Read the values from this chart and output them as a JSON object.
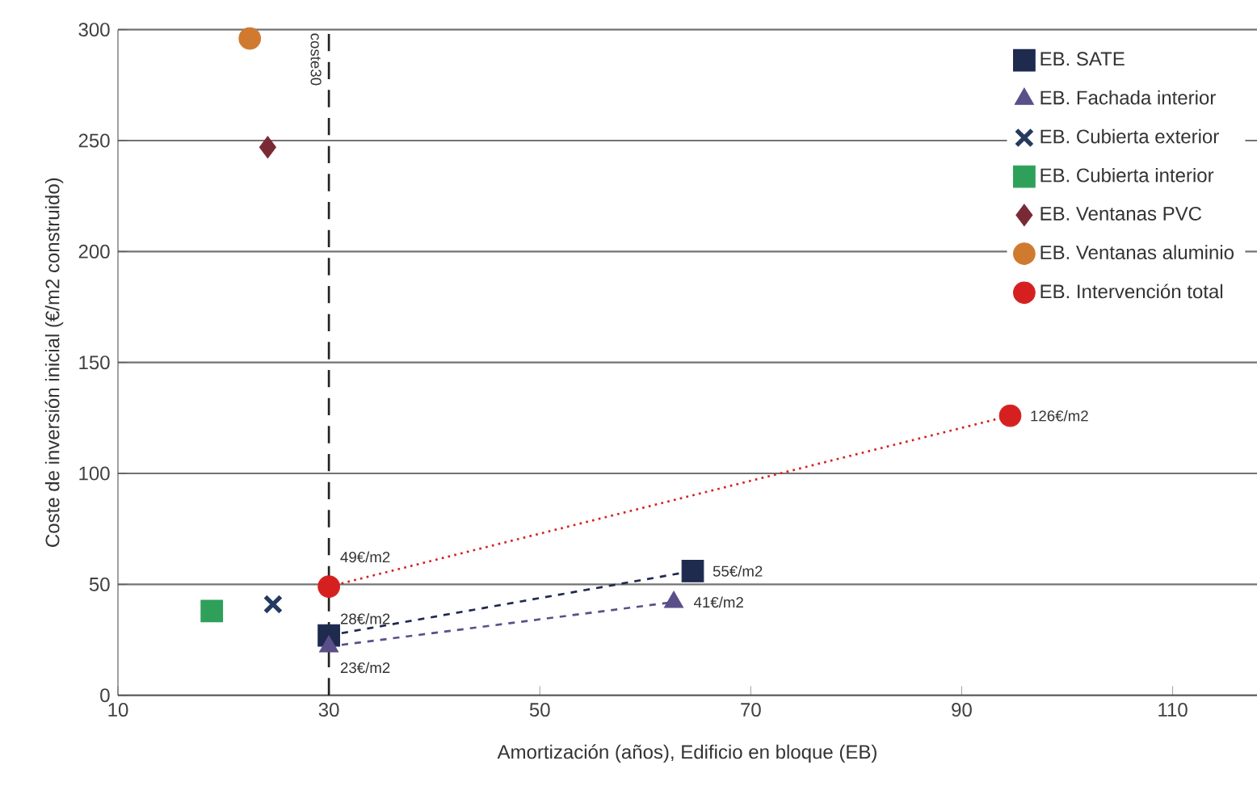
{
  "chart_data": {
    "type": "scatter",
    "xlabel": "Amortización (años), Edificio en bloque (EB)",
    "ylabel": "Coste de inversión inicial (€/m2 construido)",
    "xlim": [
      10,
      118
    ],
    "xticks": [
      10,
      30,
      50,
      70,
      90,
      110
    ],
    "ylim": [
      0,
      300
    ],
    "yticks": [
      0,
      50,
      100,
      150,
      200,
      250,
      300
    ],
    "grid": "y",
    "legend": "top right",
    "series": [
      {
        "name": "EB. SATE",
        "type": "line",
        "line_style": "dashed",
        "marker": "square",
        "color": "#1f2a4f",
        "x": [
          30,
          64.5
        ],
        "values": [
          27,
          56
        ]
      },
      {
        "name": "EB. Fachada interior",
        "type": "line",
        "line_style": "dashed",
        "marker": "triangle",
        "color": "#5b4f8a",
        "x": [
          30,
          62.7
        ],
        "values": [
          22,
          42
        ]
      },
      {
        "name": "EB. Cubierta exterior",
        "marker": "cross",
        "color": "#243a5e",
        "x": [
          24.7
        ],
        "values": [
          41
        ]
      },
      {
        "name": "EB. Cubierta interior",
        "marker": "square",
        "color": "#2ea05a",
        "x": [
          18.9
        ],
        "values": [
          38
        ]
      },
      {
        "name": "EB. Ventanas PVC",
        "marker": "diamond",
        "color": "#7a2a35",
        "x": [
          24.2
        ],
        "values": [
          247
        ]
      },
      {
        "name": "EB. Ventanas aluminio",
        "marker": "circle",
        "color": "#d07a30",
        "x": [
          22.5
        ],
        "values": [
          296
        ]
      },
      {
        "name": "EB. Intervención total",
        "type": "line",
        "line_style": "dotted",
        "marker": "circle",
        "color": "#d62020",
        "x": [
          30,
          94.6
        ],
        "values": [
          49,
          126
        ]
      }
    ],
    "ref_lines": [
      {
        "axis": "x",
        "value": 30,
        "label": "coste30",
        "line_style": "dashed",
        "color": "#222222"
      }
    ],
    "annotations": [
      {
        "text": "49€/m2",
        "x": 30,
        "y": 49
      },
      {
        "text": "28€/m2",
        "x": 30,
        "y": 27
      },
      {
        "text": "23€/m2",
        "x": 30,
        "y": 22
      },
      {
        "text": "55€/m2",
        "x": 64.5,
        "y": 56
      },
      {
        "text": "41€/m2",
        "x": 62.7,
        "y": 42
      },
      {
        "text": "126€/m2",
        "x": 94.6,
        "y": 126
      }
    ]
  }
}
